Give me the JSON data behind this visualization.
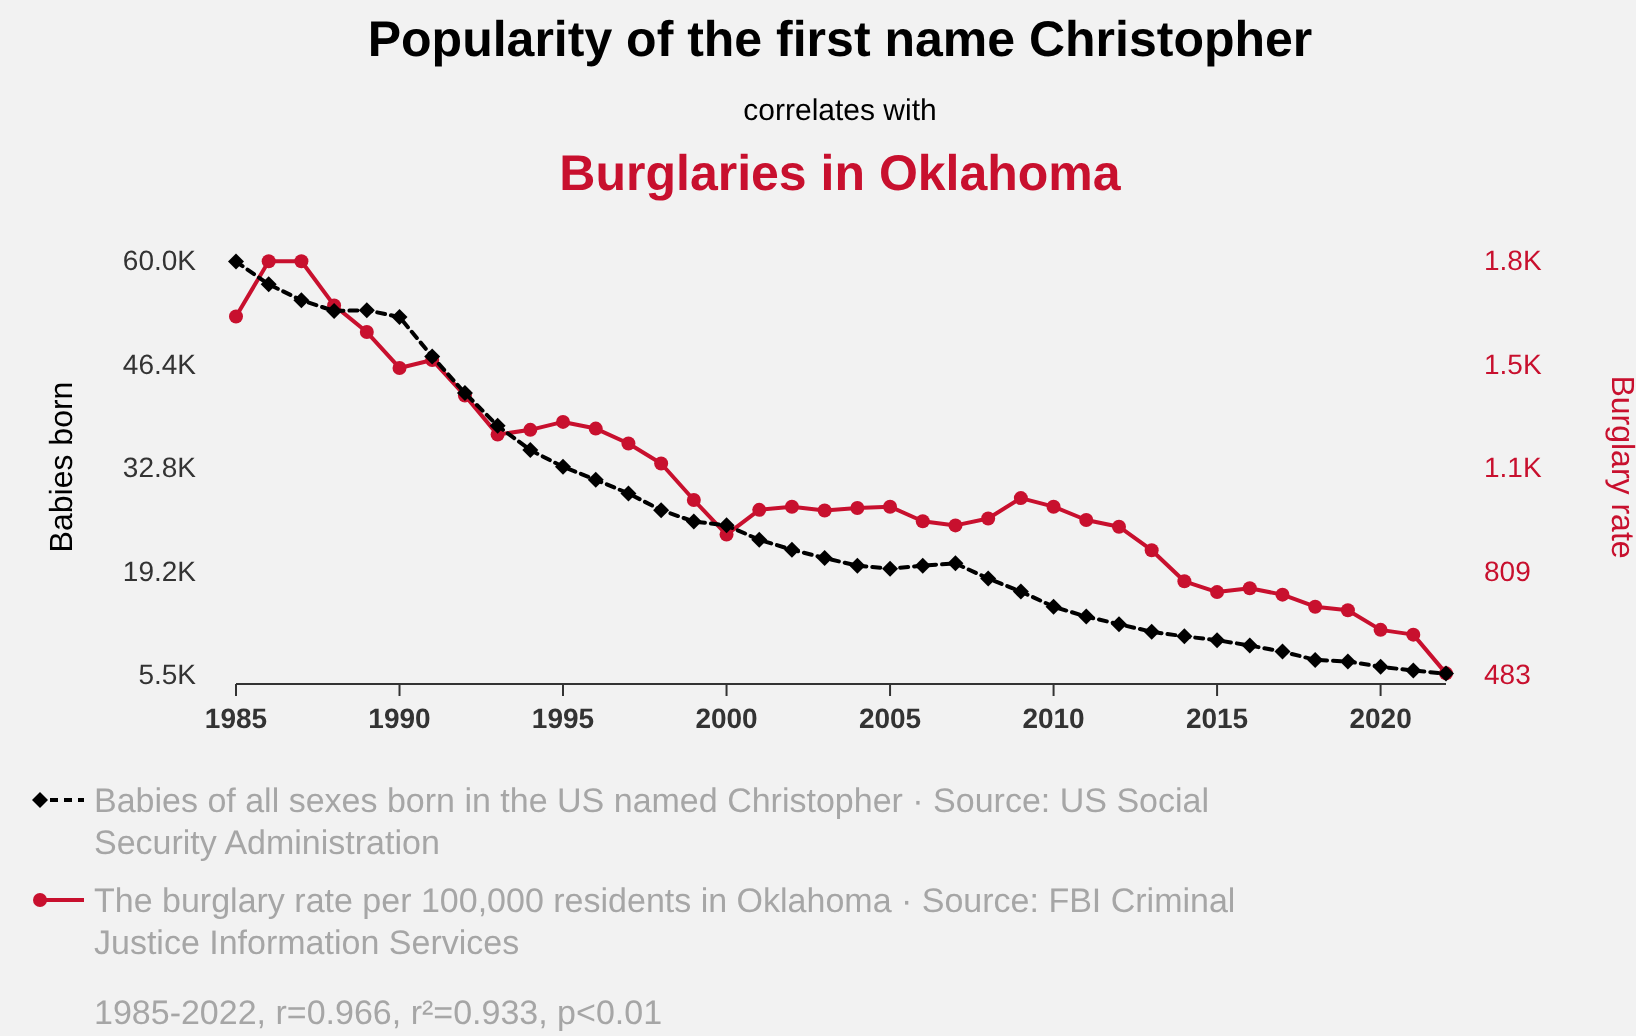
{
  "chart_data": {
    "type": "line",
    "title": "Popularity of the first name Christopher",
    "subtitle": "correlates with",
    "annotations": [
      "Burglaries in Oklahoma",
      "1985-2022, r=0.966, r²=0.933, p<0.01"
    ],
    "ylabel": "Babies born",
    "y2label": "Burglary rate",
    "x": [
      1985,
      1986,
      1987,
      1988,
      1989,
      1990,
      1991,
      1992,
      1993,
      1994,
      1995,
      1996,
      1997,
      1998,
      1999,
      2000,
      2001,
      2002,
      2003,
      2004,
      2005,
      2006,
      2007,
      2008,
      2009,
      2010,
      2011,
      2012,
      2013,
      2014,
      2015,
      2016,
      2017,
      2018,
      2019,
      2020,
      2021,
      2022
    ],
    "xlim": [
      1985,
      2022
    ],
    "xticks": [
      1985,
      1990,
      1995,
      2000,
      2005,
      2010,
      2015,
      2020
    ],
    "ylim": [
      5550,
      60000
    ],
    "yticks": [
      {
        "value": 5550,
        "label": "5.5K"
      },
      {
        "value": 19162.5,
        "label": "19.2K"
      },
      {
        "value": 32775,
        "label": "32.8K"
      },
      {
        "value": 46387.5,
        "label": "46.4K"
      },
      {
        "value": 60000,
        "label": "60.0K"
      }
    ],
    "y2lim": [
      483,
      1787
    ],
    "y2ticks": [
      483,
      809,
      {
        "value": 1135,
        "label": "1.1K"
      },
      {
        "value": 1461,
        "label": "1.5K"
      },
      {
        "value": 1787,
        "label": "1.8K"
      }
    ],
    "legend": "bottom",
    "series": [
      {
        "name": "Babies of all sexes born in the US named Christopher · Source: US Social Security Administration",
        "color": "#000000",
        "marker": "diamond",
        "line_style": "dashed",
        "values": [
          59800,
          56800,
          54700,
          53300,
          53400,
          52500,
          47300,
          42500,
          38200,
          35000,
          32800,
          31100,
          29300,
          27100,
          25600,
          25100,
          23200,
          21900,
          20800,
          19800,
          19400,
          19800,
          20100,
          18100,
          16400,
          14400,
          13100,
          12100,
          11100,
          10500,
          10000,
          9300,
          8500,
          7400,
          7200,
          6500,
          6000,
          5600
        ]
      },
      {
        "name": "The burglary rate per 100,000 residents in Oklahoma · Source: FBI Criminal Justice Information Services",
        "color": "#c8102e",
        "marker": "circle",
        "line_style": "solid",
        "axis": "y2",
        "values": [
          1609,
          1783,
          1783,
          1644,
          1560,
          1447,
          1472,
          1360,
          1237,
          1252,
          1277,
          1256,
          1209,
          1146,
          1031,
          922,
          1000,
          1010,
          998,
          1006,
          1010,
          964,
          951,
          973,
          1037,
          1010,
          968,
          947,
          873,
          775,
          741,
          753,
          733,
          695,
          684,
          622,
          607,
          485
        ]
      }
    ]
  }
}
